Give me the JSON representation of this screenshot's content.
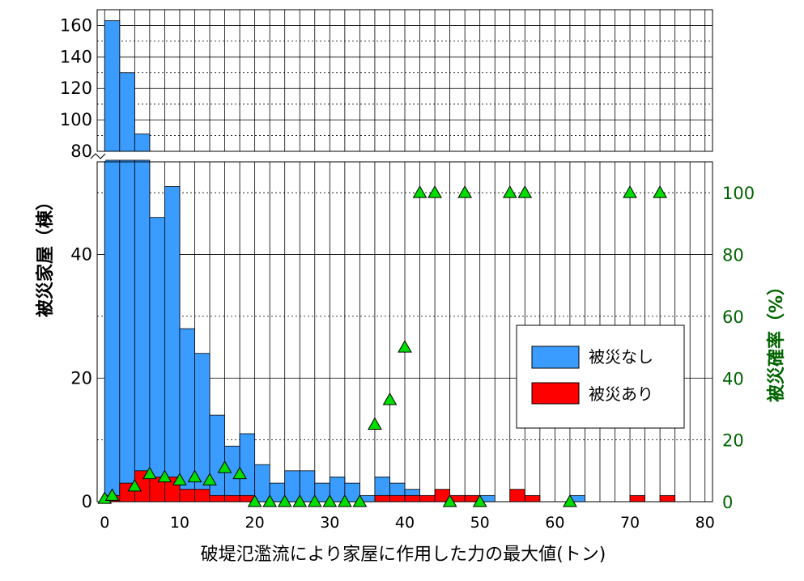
{
  "chart_data": {
    "type": "bar",
    "xlabel": "破堤氾濫流により家屋に作用した力の最大値(トン)",
    "ylabel": "被災家屋（棟）",
    "y2label": "被災確率（%）",
    "x_ticks": [
      "0",
      "10",
      "20",
      "30",
      "40",
      "50",
      "60",
      "70",
      "80"
    ],
    "y_ticks_lower": [
      "0",
      "20",
      "40"
    ],
    "y_ticks_upper": [
      "80",
      "100",
      "120",
      "140",
      "160"
    ],
    "y2_ticks": [
      "0",
      "20",
      "40",
      "60",
      "80",
      "100"
    ],
    "xlim": [
      -1,
      81
    ],
    "ylim_lower": [
      0,
      55
    ],
    "ylim_upper": [
      80,
      170
    ],
    "y2lim": [
      0,
      100
    ],
    "broken_y_axis": true,
    "bin_width": 2,
    "grid": "on",
    "legend_position": "right",
    "series": [
      {
        "name": "被災なし",
        "color": "#3b9cff",
        "bins": [
          {
            "x0": 0,
            "x1": 2,
            "value": 163
          },
          {
            "x0": 2,
            "x1": 4,
            "value": 130
          },
          {
            "x0": 4,
            "x1": 6,
            "value": 91
          },
          {
            "x0": 6,
            "x1": 8,
            "value": 46
          },
          {
            "x0": 8,
            "x1": 10,
            "value": 51
          },
          {
            "x0": 10,
            "x1": 12,
            "value": 28
          },
          {
            "x0": 12,
            "x1": 14,
            "value": 24
          },
          {
            "x0": 14,
            "x1": 16,
            "value": 14
          },
          {
            "x0": 16,
            "x1": 18,
            "value": 9
          },
          {
            "x0": 18,
            "x1": 20,
            "value": 11
          },
          {
            "x0": 20,
            "x1": 22,
            "value": 6
          },
          {
            "x0": 22,
            "x1": 24,
            "value": 3
          },
          {
            "x0": 24,
            "x1": 26,
            "value": 5
          },
          {
            "x0": 26,
            "x1": 28,
            "value": 5
          },
          {
            "x0": 28,
            "x1": 30,
            "value": 3
          },
          {
            "x0": 30,
            "x1": 32,
            "value": 4
          },
          {
            "x0": 32,
            "x1": 34,
            "value": 3
          },
          {
            "x0": 34,
            "x1": 36,
            "value": 1
          },
          {
            "x0": 36,
            "x1": 38,
            "value": 4
          },
          {
            "x0": 38,
            "x1": 40,
            "value": 3
          },
          {
            "x0": 40,
            "x1": 42,
            "value": 2
          },
          {
            "x0": 42,
            "x1": 44,
            "value": 1
          },
          {
            "x0": 44,
            "x1": 46,
            "value": 0
          },
          {
            "x0": 46,
            "x1": 48,
            "value": 1
          },
          {
            "x0": 48,
            "x1": 50,
            "value": 1
          },
          {
            "x0": 50,
            "x1": 52,
            "value": 1
          },
          {
            "x0": 62,
            "x1": 64,
            "value": 1
          }
        ]
      },
      {
        "name": "被災あり",
        "color": "#ff0000",
        "bins": [
          {
            "x0": 0,
            "x1": 2,
            "value": 1
          },
          {
            "x0": 2,
            "x1": 4,
            "value": 3
          },
          {
            "x0": 4,
            "x1": 6,
            "value": 5
          },
          {
            "x0": 6,
            "x1": 8,
            "value": 4
          },
          {
            "x0": 8,
            "x1": 10,
            "value": 4
          },
          {
            "x0": 10,
            "x1": 12,
            "value": 2
          },
          {
            "x0": 12,
            "x1": 14,
            "value": 2
          },
          {
            "x0": 14,
            "x1": 16,
            "value": 1
          },
          {
            "x0": 16,
            "x1": 18,
            "value": 1
          },
          {
            "x0": 18,
            "x1": 20,
            "value": 1
          },
          {
            "x0": 36,
            "x1": 38,
            "value": 1
          },
          {
            "x0": 38,
            "x1": 40,
            "value": 1
          },
          {
            "x0": 40,
            "x1": 42,
            "value": 1
          },
          {
            "x0": 42,
            "x1": 44,
            "value": 1
          },
          {
            "x0": 44,
            "x1": 46,
            "value": 2
          },
          {
            "x0": 46,
            "x1": 48,
            "value": 1
          },
          {
            "x0": 48,
            "x1": 50,
            "value": 1
          },
          {
            "x0": 54,
            "x1": 56,
            "value": 2
          },
          {
            "x0": 56,
            "x1": 58,
            "value": 1
          },
          {
            "x0": 70,
            "x1": 72,
            "value": 1
          },
          {
            "x0": 74,
            "x1": 76,
            "value": 1
          }
        ]
      }
    ],
    "probability_series": {
      "color": "#00dd00",
      "marker": "triangle",
      "axis": "y2",
      "points": [
        {
          "x": 0,
          "y": 1
        },
        {
          "x": 1,
          "y": 2
        },
        {
          "x": 4,
          "y": 5
        },
        {
          "x": 6,
          "y": 9
        },
        {
          "x": 8,
          "y": 8
        },
        {
          "x": 10,
          "y": 7
        },
        {
          "x": 12,
          "y": 8
        },
        {
          "x": 14,
          "y": 7
        },
        {
          "x": 16,
          "y": 11
        },
        {
          "x": 18,
          "y": 9
        },
        {
          "x": 20,
          "y": 0
        },
        {
          "x": 22,
          "y": 0
        },
        {
          "x": 24,
          "y": 0
        },
        {
          "x": 26,
          "y": 0
        },
        {
          "x": 28,
          "y": 0
        },
        {
          "x": 30,
          "y": 0
        },
        {
          "x": 32,
          "y": 0
        },
        {
          "x": 34,
          "y": 0
        },
        {
          "x": 36,
          "y": 25
        },
        {
          "x": 38,
          "y": 33
        },
        {
          "x": 40,
          "y": 50
        },
        {
          "x": 42,
          "y": 100
        },
        {
          "x": 44,
          "y": 100
        },
        {
          "x": 46,
          "y": 0
        },
        {
          "x": 48,
          "y": 100
        },
        {
          "x": 50,
          "y": 0
        },
        {
          "x": 54,
          "y": 100
        },
        {
          "x": 56,
          "y": 100
        },
        {
          "x": 62,
          "y": 0
        },
        {
          "x": 70,
          "y": 100
        },
        {
          "x": 74,
          "y": 100
        }
      ]
    },
    "legend": [
      {
        "label": "被災なし",
        "color": "#3b9cff"
      },
      {
        "label": "被災あり",
        "color": "#ff0000"
      }
    ]
  }
}
